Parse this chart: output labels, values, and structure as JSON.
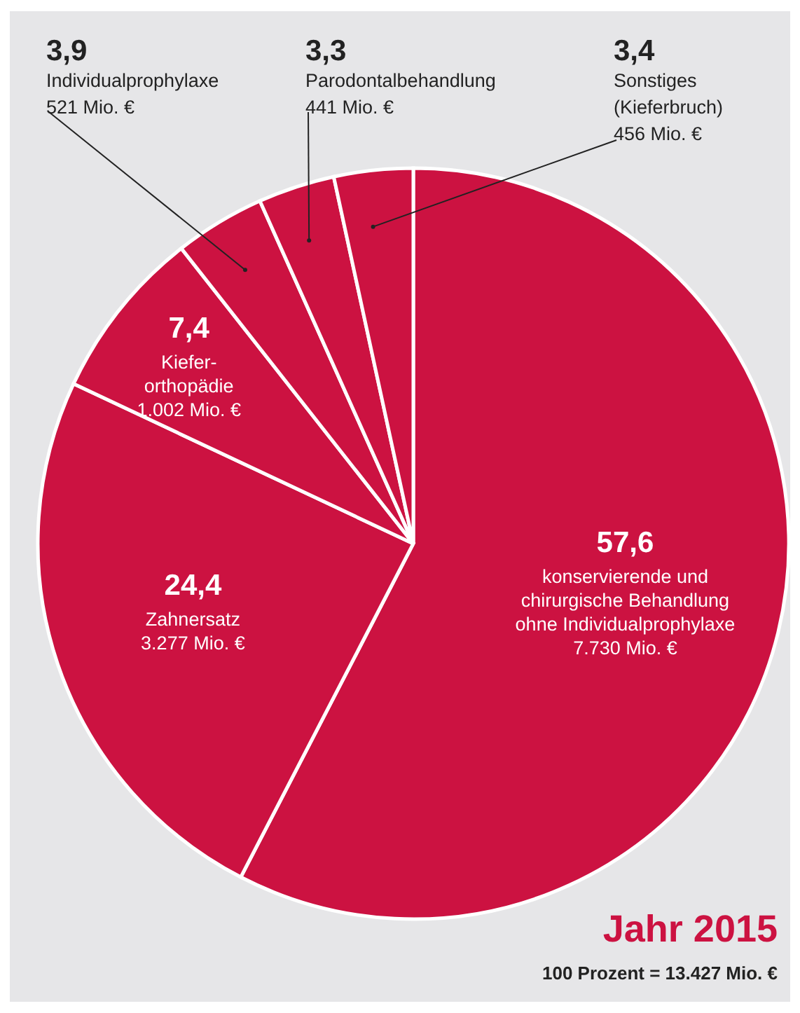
{
  "chart_data": {
    "type": "pie",
    "title": "Jahr 2015",
    "subtitle": "100 Prozent = 13.427 Mio. €",
    "categories": [
      "konservierende und\nchirurgische Behandlung\nohne Individualprophylaxe\n7.730 Mio. €",
      "Zahnersatz\n3.277 Mio. €",
      "Kiefer-\northopädie\n1.002 Mio. €",
      "Individualprophylaxe\n521 Mio. €",
      "Parodontalbehandlung\n441 Mio. €",
      "Sonstiges\n(Kieferbruch)\n456 Mio. €"
    ],
    "values": [
      57.6,
      24.4,
      7.4,
      3.9,
      3.3,
      3.4
    ],
    "value_labels": [
      "57,6",
      "24,4",
      "7,4",
      "3,9",
      "3,3",
      "3,4"
    ],
    "colors": [
      "#cc1241",
      "#cc1241",
      "#cc1241",
      "#cc1241",
      "#cc1241",
      "#cc1241"
    ],
    "legend": false
  }
}
